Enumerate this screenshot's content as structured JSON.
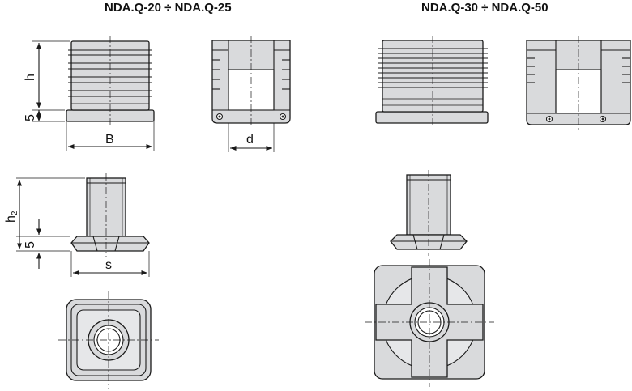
{
  "titles": {
    "left": "NDA.Q-20 ÷ NDA.Q-25",
    "right": "NDA.Q-30 ÷ NDA.Q-50"
  },
  "dimensions": {
    "h": "h",
    "five_a": "5",
    "B": "B",
    "d": "d",
    "h2_main": "h",
    "h2_sub": "2",
    "five_b": "5",
    "s": "s"
  },
  "colors": {
    "part_fill": "#d9dadc",
    "outline": "#1a1a1a"
  }
}
